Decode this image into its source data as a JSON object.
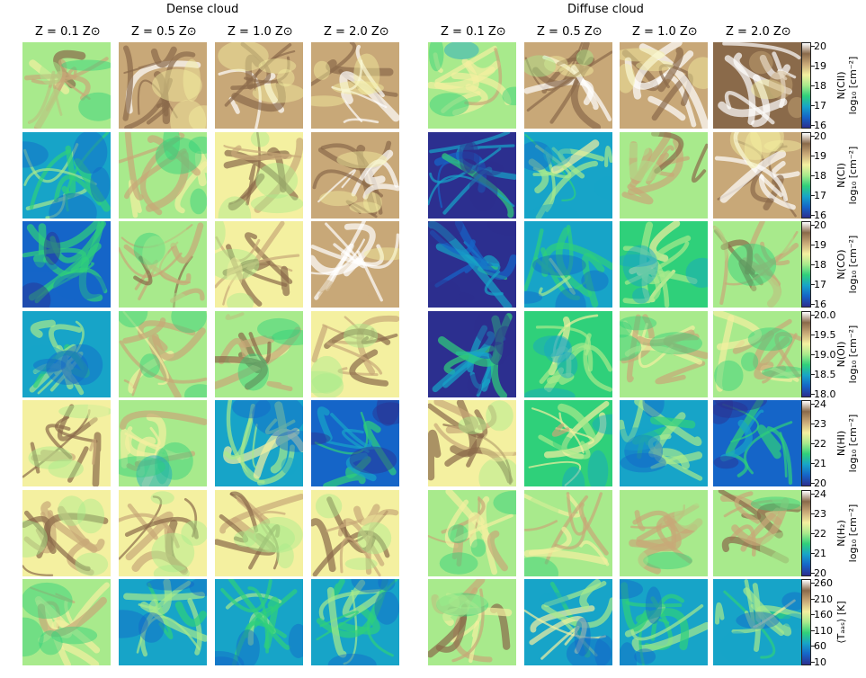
{
  "groups": [
    "Dense cloud",
    "Diffuse cloud"
  ],
  "columns": [
    "Z = 0.1 Z⊙",
    "Z = 0.5 Z⊙",
    "Z = 1.0 Z⊙",
    "Z = 2.0 Z⊙"
  ],
  "colors": {
    "low": "#2c2f8f",
    "blue": "#1565c8",
    "cyan": "#17a4c8",
    "green": "#2fd07a",
    "lightgreen": "#a8ea8c",
    "yellow": "#f4f0a0",
    "tan": "#c8a878",
    "brown": "#8a6a4a",
    "white": "#ffffff"
  },
  "chart_data": {
    "type": "heatmap",
    "rows": [
      {
        "quantity": "N(CII)",
        "label_lines": [
          "N(CII)",
          "log₁₀ [cm⁻²]"
        ],
        "ticks": [
          "20",
          "19",
          "18",
          "17",
          "16"
        ],
        "range": [
          16,
          20
        ],
        "levels": [
          [
            0.55,
            0.7,
            0.72,
            0.75
          ],
          [
            0.45,
            0.7,
            0.75,
            0.82
          ]
        ]
      },
      {
        "quantity": "N(CI)",
        "label_lines": [
          "N(CI)",
          "log₁₀ [cm⁻²]"
        ],
        "ticks": [
          "20",
          "19",
          "18",
          "17",
          "16"
        ],
        "range": [
          16,
          20
        ],
        "levels": [
          [
            0.25,
            0.5,
            0.62,
            0.72
          ],
          [
            0.05,
            0.3,
            0.55,
            0.72
          ]
        ]
      },
      {
        "quantity": "N(CO)",
        "label_lines": [
          "N(CO)",
          "log₁₀ [cm⁻²]"
        ],
        "ticks": [
          "20",
          "19",
          "18",
          "17",
          "16"
        ],
        "range": [
          16,
          20
        ],
        "levels": [
          [
            0.18,
            0.55,
            0.65,
            0.8
          ],
          [
            0.03,
            0.2,
            0.35,
            0.55
          ]
        ]
      },
      {
        "quantity": "N(OI)",
        "label_lines": [
          "N(OI)",
          "log₁₀ [cm⁻²]"
        ],
        "ticks": [
          "20.0",
          "19.5",
          "19.0",
          "18.5",
          "18.0"
        ],
        "range": [
          18,
          20
        ],
        "levels": [
          [
            0.25,
            0.5,
            0.55,
            0.6
          ],
          [
            0.05,
            0.35,
            0.45,
            0.52
          ]
        ]
      },
      {
        "quantity": "N(HI)",
        "label_lines": [
          "N(HI)",
          "log₁₀ [cm⁻²]"
        ],
        "ticks": [
          "24",
          "23",
          "22",
          "21",
          "20"
        ],
        "range": [
          20,
          24
        ],
        "levels": [
          [
            0.62,
            0.45,
            0.3,
            0.12
          ],
          [
            0.62,
            0.4,
            0.25,
            0.12
          ]
        ]
      },
      {
        "quantity": "N(H₂)",
        "label_lines": [
          "N(H₂)",
          "log₁₀ [cm⁻²]"
        ],
        "ticks": [
          "24",
          "23",
          "22",
          "21",
          "20"
        ],
        "range": [
          20,
          24
        ],
        "levels": [
          [
            0.62,
            0.62,
            0.62,
            0.62
          ],
          [
            0.5,
            0.52,
            0.55,
            0.55
          ]
        ]
      },
      {
        "quantity": "⟨T_gas⟩",
        "label_lines": [
          "⟨Tₐₐₛ⟩ [K]"
        ],
        "ticks": [
          "260",
          "210",
          "160",
          "110",
          "60",
          "10"
        ],
        "range": [
          10,
          285
        ],
        "levels": [
          [
            0.5,
            0.25,
            0.22,
            0.22
          ],
          [
            0.55,
            0.3,
            0.25,
            0.28
          ]
        ]
      }
    ]
  }
}
